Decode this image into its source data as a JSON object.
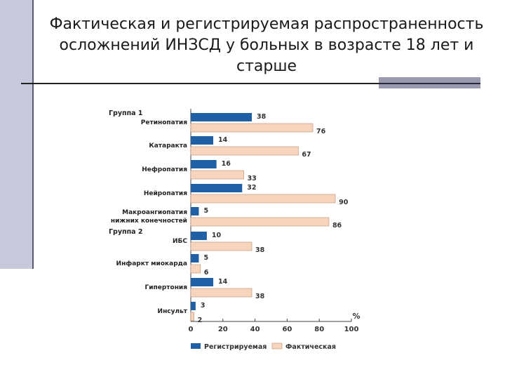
{
  "title": "Фактическая и регистрируемая распространенность осложнений ИНЗСД у больных в возрасте 18 лет и старше",
  "chart_data": {
    "type": "bar",
    "orientation": "horizontal",
    "unit": "%",
    "xlim": [
      0,
      100
    ],
    "xticks": [
      0,
      20,
      40,
      60,
      80,
      100
    ],
    "groups": [
      {
        "label": "Группа 1",
        "category_index": 0
      },
      {
        "label": "Группа 2",
        "category_index": 5
      }
    ],
    "categories": [
      "Ретинопатия",
      "Катаракта",
      "Нефропатия",
      "Нейропатия",
      "Макроангиопатия нижних конечностей",
      "ИБС",
      "Инфаркт миокарда",
      "Гипертония",
      "Инсульт"
    ],
    "category_lines": [
      [
        "Ретинопатия"
      ],
      [
        "Катаракта"
      ],
      [
        "Нефропатия"
      ],
      [
        "Нейропатия"
      ],
      [
        "Макроангиопатия",
        "нижних конечностей"
      ],
      [
        "ИБС"
      ],
      [
        "Инфаркт миокарда"
      ],
      [
        "Гипертония"
      ],
      [
        "Инсульт"
      ]
    ],
    "series": [
      {
        "name": "Регистрируемая",
        "color": "#1f5fa5",
        "values": [
          38,
          14,
          16,
          32,
          5,
          10,
          5,
          14,
          3
        ]
      },
      {
        "name": "Фактическая",
        "color": "#f7d5bd",
        "values": [
          76,
          67,
          33,
          90,
          86,
          38,
          6,
          38,
          2
        ]
      }
    ],
    "legend_position": "bottom"
  }
}
